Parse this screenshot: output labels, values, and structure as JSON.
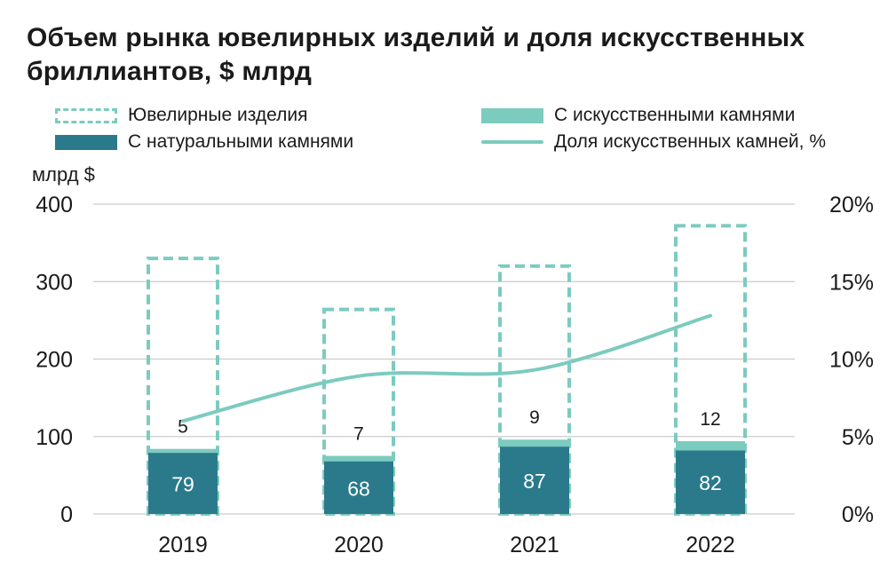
{
  "title": "Объем рынка ювелирных изделий и доля искусственных бриллиантов, $ млрд",
  "legend": {
    "total": "Ювелирные изделия",
    "lab": "С искусственными камнями",
    "natural": "С натуральными камнями",
    "share": "Доля искусственных камней, %"
  },
  "colors": {
    "natural": "#2a7a8c",
    "lab": "#7ccbbf",
    "total_border": "#7ccbbf",
    "share_line": "#7ccbbf",
    "grid": "#cccccc"
  },
  "chart_data": {
    "type": "bar",
    "ylabel": "млрд $",
    "ylim": [
      0,
      400
    ],
    "y_ticks": [
      "0",
      "100",
      "200",
      "300",
      "400"
    ],
    "y2_ticks": [
      "0%",
      "5%",
      "10%",
      "15%",
      "20%"
    ],
    "y2lim": [
      0,
      20
    ],
    "categories": [
      "2019",
      "2020",
      "2021",
      "2022"
    ],
    "series": [
      {
        "name": "С натуральными камнями",
        "values": [
          79,
          68,
          87,
          82
        ],
        "labels": [
          "79",
          "68",
          "87",
          "82"
        ]
      },
      {
        "name": "С искусственными камнями",
        "values": [
          5,
          7,
          9,
          12
        ],
        "labels": [
          "5",
          "7",
          "9",
          "12"
        ]
      },
      {
        "name": "Ювелирные изделия",
        "values": [
          330,
          264,
          320,
          372
        ]
      },
      {
        "name": "Доля искусственных камней, %",
        "axis": "right",
        "values": [
          6,
          8.9,
          9.3,
          12.8
        ]
      }
    ],
    "grid": true
  }
}
